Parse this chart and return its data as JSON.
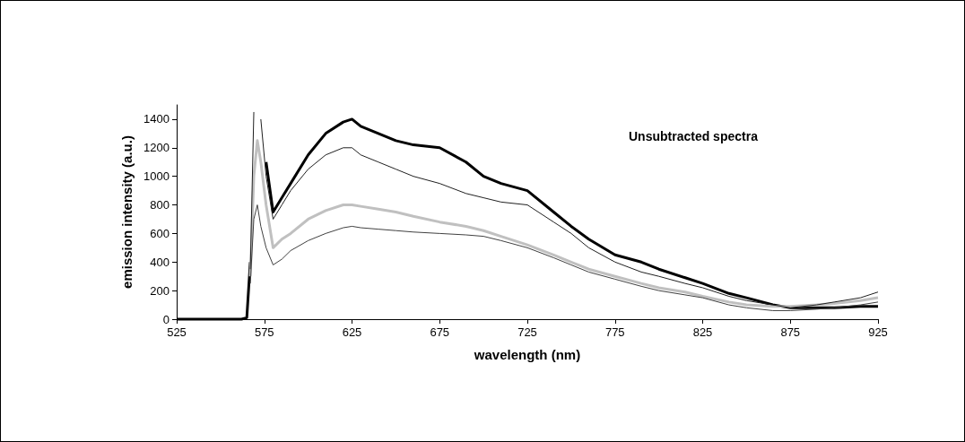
{
  "chart_data": {
    "type": "line",
    "xlabel": "wavelength (nm)",
    "ylabel": "emission intensity (a.u.)",
    "annotations": [
      "Unsubtracted spectra"
    ],
    "x": [
      525,
      540,
      555,
      562,
      565,
      567,
      569,
      571,
      573,
      576,
      580,
      585,
      590,
      600,
      610,
      620,
      625,
      630,
      640,
      650,
      660,
      675,
      690,
      700,
      710,
      725,
      740,
      750,
      760,
      775,
      790,
      800,
      815,
      825,
      840,
      850,
      865,
      875,
      890,
      900,
      915,
      925
    ],
    "series": [
      {
        "color": "#000000",
        "values": [
          0,
          0,
          0,
          0,
          10,
          400,
          null,
          null,
          null,
          1100,
          750,
          850,
          950,
          1150,
          1300,
          1380,
          1400,
          1350,
          1300,
          1250,
          1220,
          1200,
          1100,
          1000,
          950,
          900,
          750,
          650,
          560,
          450,
          400,
          350,
          290,
          250,
          180,
          150,
          100,
          80,
          80,
          80,
          90,
          90
        ]
      },
      {
        "color": "#202020",
        "values": [
          null,
          null,
          null,
          null,
          null,
          350,
          1450,
          null,
          1400,
          1000,
          700,
          800,
          900,
          1050,
          1150,
          1200,
          1200,
          1150,
          1100,
          1050,
          1000,
          950,
          880,
          850,
          820,
          800,
          680,
          600,
          500,
          400,
          330,
          300,
          250,
          220,
          160,
          130,
          100,
          80,
          100,
          120,
          150,
          190
        ]
      },
      {
        "color": "#c0c0c0",
        "values": [
          null,
          null,
          null,
          null,
          null,
          300,
          1000,
          1250,
          1100,
          800,
          500,
          560,
          600,
          700,
          760,
          800,
          800,
          790,
          770,
          750,
          720,
          680,
          650,
          620,
          580,
          520,
          450,
          400,
          350,
          300,
          250,
          220,
          190,
          160,
          120,
          100,
          90,
          90,
          100,
          110,
          130,
          150
        ]
      },
      {
        "color": "#404040",
        "values": [
          null,
          null,
          null,
          null,
          null,
          250,
          700,
          800,
          650,
          500,
          380,
          420,
          480,
          550,
          600,
          640,
          650,
          640,
          630,
          620,
          610,
          600,
          590,
          580,
          550,
          500,
          430,
          380,
          330,
          280,
          230,
          200,
          170,
          150,
          100,
          80,
          60,
          60,
          70,
          80,
          100,
          120
        ]
      }
    ],
    "xlim": [
      525,
      925
    ],
    "xticks": [
      525,
      575,
      625,
      675,
      725,
      775,
      825,
      875,
      925
    ],
    "ylim": [
      0,
      1500
    ],
    "yticks": [
      0,
      200,
      400,
      600,
      800,
      1000,
      1200,
      1400
    ],
    "grid": false,
    "marker": "none",
    "line_style": "solid"
  }
}
